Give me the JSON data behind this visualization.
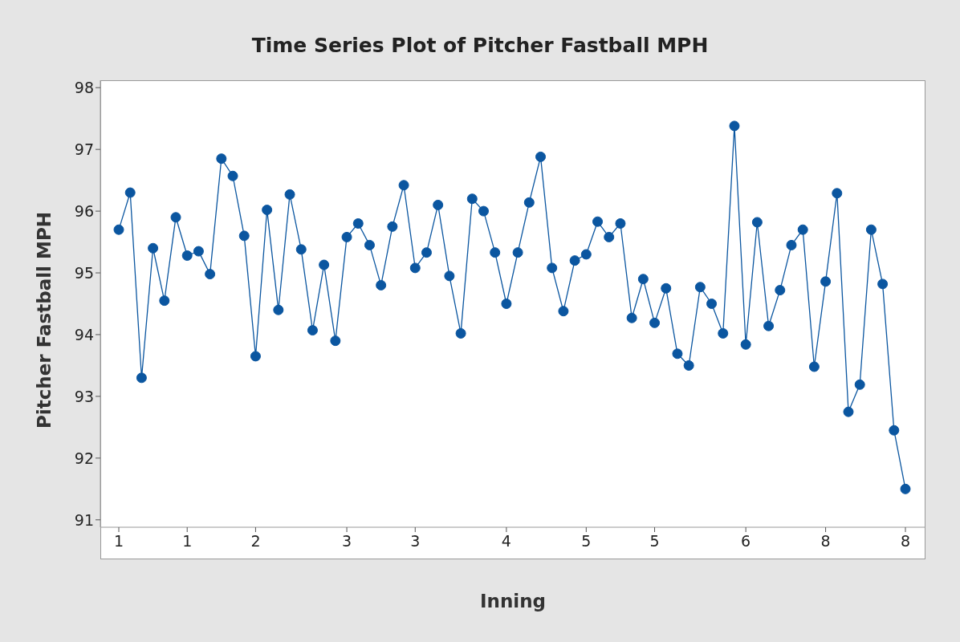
{
  "chart_data": {
    "type": "line",
    "title": "Time Series Plot of Pitcher Fastball MPH",
    "xlabel": "Inning",
    "ylabel": "Pitcher Fastball MPH",
    "categories": [
      "1",
      null,
      null,
      null,
      null,
      null,
      "1",
      null,
      null,
      null,
      null,
      null,
      "2",
      null,
      null,
      null,
      null,
      null,
      null,
      null,
      "3",
      null,
      null,
      null,
      null,
      null,
      "3",
      null,
      null,
      null,
      null,
      null,
      null,
      null,
      "4",
      null,
      null,
      null,
      null,
      null,
      null,
      "5",
      null,
      null,
      null,
      null,
      null,
      "5",
      null,
      null,
      null,
      null,
      null,
      null,
      null,
      "6",
      null,
      null,
      null,
      null,
      null,
      null,
      "8",
      null,
      null,
      null,
      null,
      null,
      null,
      "8"
    ],
    "series": [
      {
        "color": "#0b56a0",
        "values": [
          95.7,
          96.3,
          93.3,
          95.4,
          94.55,
          95.9,
          95.28,
          95.35,
          94.98,
          96.85,
          96.57,
          95.6,
          93.65,
          96.02,
          94.4,
          96.27,
          95.38,
          94.07,
          95.13,
          93.9,
          95.58,
          95.8,
          95.45,
          94.8,
          95.75,
          96.42,
          95.08,
          95.33,
          96.1,
          94.95,
          94.02,
          96.2,
          96.0,
          95.33,
          94.5,
          95.33,
          96.14,
          96.88,
          95.08,
          94.38,
          95.2,
          95.3,
          95.83,
          95.58,
          95.8,
          94.27,
          94.9,
          94.19,
          94.75,
          93.69,
          93.5,
          94.77,
          94.5,
          94.02,
          97.38,
          93.84,
          95.82,
          94.14,
          94.72,
          95.45,
          95.7,
          93.48,
          94.86,
          96.29,
          92.75,
          93.19,
          95.7,
          94.82,
          92.45,
          91.5
        ]
      }
    ],
    "ylim": [
      90.88,
      98.12
    ],
    "yticks": [
      91,
      92,
      93,
      94,
      95,
      96,
      97,
      98
    ],
    "grid": false,
    "legend": false,
    "marker": "circle",
    "line_style": "solid"
  }
}
